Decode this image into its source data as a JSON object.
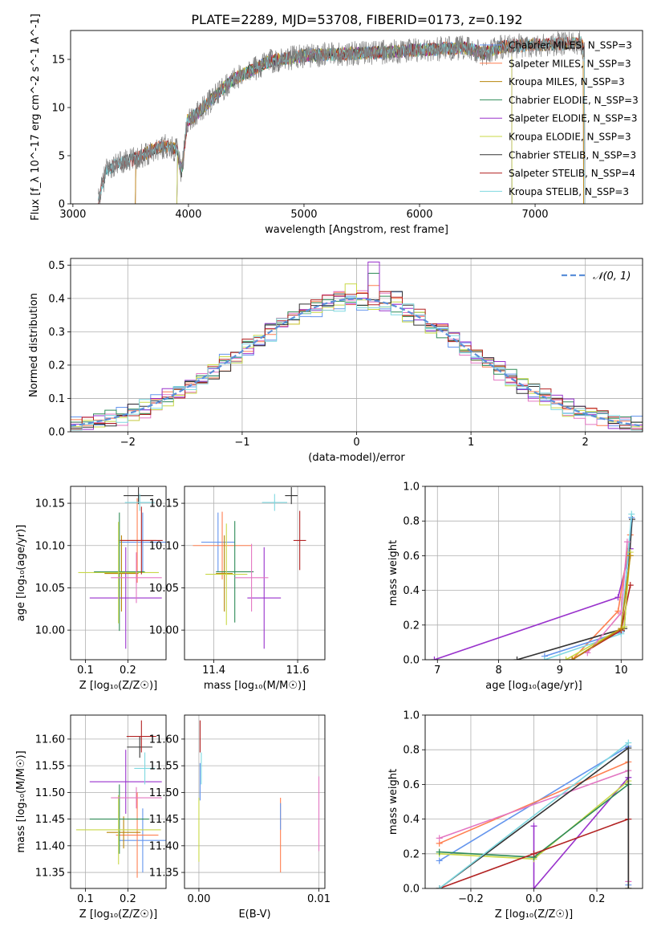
{
  "figure": {
    "title": "PLATE=2289, MJD=53708, FIBERID=0173, z=0.192"
  },
  "chart_data": [
    {
      "id": "spectrum",
      "type": "line",
      "xlabel": "wavelength [Angstrom, rest frame]",
      "ylabel": "Flux [f_λ 10^-17 erg cm^-2 s^-1 A^-1]",
      "xlim": [
        2980,
        7930
      ],
      "ylim": [
        0,
        18
      ],
      "xticks": [
        3000,
        4000,
        5000,
        6000,
        7000
      ],
      "yticks": [
        0,
        5,
        10,
        15
      ],
      "grid": false,
      "legend_position": "right",
      "observed_color": "#808080",
      "spectrum_anchors": {
        "x": [
          3220,
          3290,
          3400,
          3520,
          3600,
          3700,
          3800,
          3900,
          3940,
          3990,
          4100,
          4200,
          4300,
          4400,
          4500,
          4600,
          4700,
          4800,
          4900,
          5000,
          5200,
          5400,
          5600,
          5800,
          6000,
          6200,
          6400,
          6560,
          6700,
          7000,
          7300,
          7400,
          7430
        ],
        "y": [
          0.2,
          3.6,
          4.2,
          4.6,
          5.0,
          5.7,
          6.0,
          5.6,
          3.2,
          8.6,
          9.6,
          10.8,
          12.0,
          13.0,
          13.6,
          14.2,
          14.8,
          15.0,
          15.2,
          15.4,
          15.5,
          15.6,
          15.7,
          15.8,
          16.0,
          16.1,
          16.2,
          15.6,
          16.3,
          16.5,
          16.7,
          16.8,
          15.5
        ]
      },
      "models": [
        {
          "name": "Chabrier MILES, N_SSP=3",
          "color": "#6495ed",
          "x_start": 3540,
          "x_end": 7420
        },
        {
          "name": "Salpeter MILES, N_SSP=3",
          "color": "#ff7f50",
          "x_start": 3540,
          "x_end": 7420
        },
        {
          "name": "Kroupa MILES, N_SSP=3",
          "color": "#b8860b",
          "x_start": 3540,
          "x_end": 7420
        },
        {
          "name": "Chabrier ELODIE, N_SSP=3",
          "color": "#2e8b57",
          "x_start": 3900,
          "x_end": 6800
        },
        {
          "name": "Salpeter ELODIE, N_SSP=3",
          "color": "#9932cc",
          "x_start": 3900,
          "x_end": 6800
        },
        {
          "name": "Kroupa ELODIE, N_SSP=3",
          "color": "#c8d846",
          "x_start": 3900,
          "x_end": 6800
        },
        {
          "name": "Chabrier STELIB, N_SSP=3",
          "color": "#333333",
          "x_start": 3220,
          "x_end": 7430
        },
        {
          "name": "Salpeter STELIB, N_SSP=4",
          "color": "#b22222",
          "x_start": 3220,
          "x_end": 7430
        },
        {
          "name": "Kroupa STELIB, N_SSP=3",
          "color": "#7fd8e0",
          "x_start": 3220,
          "x_end": 7430
        }
      ]
    },
    {
      "id": "residuals",
      "type": "bar",
      "xlabel": "(data-model)/error",
      "ylabel": "Normed distribution",
      "xlim": [
        -2.5,
        2.5
      ],
      "ylim": [
        0,
        0.52
      ],
      "xticks": [
        -2,
        -1,
        0,
        1,
        2
      ],
      "yticks": [
        0.0,
        0.1,
        0.2,
        0.3,
        0.4,
        0.5
      ],
      "grid": true,
      "legend_position": "upper right",
      "gaussian": {
        "name": "𝒩(0, 1)",
        "mu": 0,
        "sigma": 1,
        "color": "#5b8fd9"
      },
      "bin_width": 0.1,
      "histograms": [
        {
          "color": "#6495ed",
          "amplitude": 0.39,
          "sigma": 1.03,
          "spike_at": 0.35,
          "spike": 0.05
        },
        {
          "color": "#ff7f50",
          "amplitude": 0.4,
          "sigma": 1.0,
          "spike_at": 0.15,
          "spike": 0.04
        },
        {
          "color": "#e377c2",
          "amplitude": 0.41,
          "sigma": 0.97,
          "spike_at": -0.25,
          "spike": 0.03
        },
        {
          "color": "#2e8b57",
          "amplitude": 0.4,
          "sigma": 1.02,
          "spike_at": 0.15,
          "spike": 0.08
        },
        {
          "color": "#9932cc",
          "amplitude": 0.4,
          "sigma": 1.01,
          "spike_at": 0.15,
          "spike": 0.09
        },
        {
          "color": "#c8d846",
          "amplitude": 0.39,
          "sigma": 1.0,
          "spike_at": -0.05,
          "spike": 0.03
        },
        {
          "color": "#333333",
          "amplitude": 0.4,
          "sigma": 1.0,
          "spike_at": 0.35,
          "spike": 0.03
        },
        {
          "color": "#b22222",
          "amplitude": 0.41,
          "sigma": 1.0,
          "spike_at": 0.75,
          "spike": 0.03
        },
        {
          "color": "#7fd8e0",
          "amplitude": 0.39,
          "sigma": 1.01,
          "spike_at": 0.45,
          "spike": 0.03
        }
      ]
    },
    {
      "id": "age-vs-metallicity",
      "type": "scatter",
      "xlabel": "Z [log₁₀(Z/Z☉)]",
      "ylabel": "age  [log₁₀(age/yr)]",
      "xlim": [
        0.065,
        0.29
      ],
      "ylim": [
        9.965,
        10.17
      ],
      "xticks": [
        0.1,
        0.2
      ],
      "yticks": [
        10.0,
        10.05,
        10.1,
        10.15
      ],
      "grid": true,
      "points": [
        {
          "color": "#6495ed",
          "x": 0.235,
          "y": 10.104,
          "xerr": 0.055,
          "yerr": 0.035
        },
        {
          "color": "#ff7f50",
          "x": 0.222,
          "y": 10.106,
          "xerr": 0.045,
          "yerr": 0.05
        },
        {
          "color": "#b8860b",
          "x": 0.185,
          "y": 10.067,
          "xerr": 0.04,
          "yerr": 0.045
        },
        {
          "color": "#2e8b57",
          "x": 0.18,
          "y": 10.069,
          "xerr": 0.06,
          "yerr": 0.07
        },
        {
          "color": "#9932cc",
          "x": 0.195,
          "y": 10.038,
          "xerr": 0.085,
          "yerr": 0.06
        },
        {
          "color": "#c8d846",
          "x": 0.178,
          "y": 10.068,
          "xerr": 0.095,
          "yerr": 0.06
        },
        {
          "color": "#333333",
          "x": 0.225,
          "y": 10.159,
          "xerr": 0.035,
          "yerr": 0.01
        },
        {
          "color": "#b22222",
          "x": 0.232,
          "y": 10.106,
          "xerr": 0.05,
          "yerr": 0.04
        },
        {
          "color": "#7fd8e0",
          "x": 0.228,
          "y": 10.151,
          "xerr": 0.035,
          "yerr": 0.01
        },
        {
          "color": "#e377c2",
          "x": 0.22,
          "y": 10.062,
          "xerr": 0.06,
          "yerr": 0.03
        }
      ]
    },
    {
      "id": "age-vs-mass",
      "type": "scatter",
      "xlabel": "mass [log₁₀(M/M☉)]",
      "ylabel": "",
      "xlim": [
        11.33,
        11.665
      ],
      "ylim": [
        9.965,
        10.17
      ],
      "xticks": [
        11.4,
        11.6
      ],
      "yticks": [
        10.0,
        10.05,
        10.1,
        10.15
      ],
      "grid": true,
      "points": [
        {
          "color": "#6495ed",
          "x": 11.41,
          "y": 10.104,
          "xerr": 0.04,
          "yerr": 0.035
        },
        {
          "color": "#ff7f50",
          "x": 11.42,
          "y": 10.1,
          "xerr": 0.07,
          "yerr": 0.04
        },
        {
          "color": "#b8860b",
          "x": 11.425,
          "y": 10.067,
          "xerr": 0.02,
          "yerr": 0.045
        },
        {
          "color": "#2e8b57",
          "x": 11.45,
          "y": 10.069,
          "xerr": 0.045,
          "yerr": 0.06
        },
        {
          "color": "#9932cc",
          "x": 11.52,
          "y": 10.038,
          "xerr": 0.04,
          "yerr": 0.06
        },
        {
          "color": "#c8d846",
          "x": 11.43,
          "y": 10.066,
          "xerr": 0.05,
          "yerr": 0.06
        },
        {
          "color": "#333333",
          "x": 11.585,
          "y": 10.159,
          "xerr": 0.015,
          "yerr": 0.01
        },
        {
          "color": "#b22222",
          "x": 11.605,
          "y": 10.106,
          "xerr": 0.015,
          "yerr": 0.035
        },
        {
          "color": "#7fd8e0",
          "x": 11.545,
          "y": 10.151,
          "xerr": 0.03,
          "yerr": 0.01
        },
        {
          "color": "#e377c2",
          "x": 11.49,
          "y": 10.062,
          "xerr": 0.04,
          "yerr": 0.04
        }
      ]
    },
    {
      "id": "mass-weight-vs-age",
      "type": "line",
      "xlabel": "age  [log₁₀(age/yr)]",
      "ylabel": "mass weight",
      "xlim": [
        6.8,
        10.35
      ],
      "ylim": [
        0,
        1.0
      ],
      "xticks": [
        7,
        8,
        9,
        10
      ],
      "yticks": [
        0.0,
        0.2,
        0.4,
        0.6,
        0.8,
        1.0
      ],
      "grid": true,
      "series": [
        {
          "color": "#9932cc",
          "x": [
            6.95,
            9.95,
            10.15
          ],
          "y": [
            0.0,
            0.36,
            0.64
          ]
        },
        {
          "color": "#ff7f50",
          "x": [
            9.2,
            9.95,
            10.15
          ],
          "y": [
            0.0,
            0.28,
            0.72
          ]
        },
        {
          "color": "#333333",
          "x": [
            8.3,
            10.05,
            10.18
          ],
          "y": [
            0.0,
            0.18,
            0.81
          ]
        },
        {
          "color": "#6495ed",
          "x": [
            8.75,
            10.0,
            10.17
          ],
          "y": [
            0.02,
            0.16,
            0.82
          ]
        },
        {
          "color": "#7fd8e0",
          "x": [
            8.75,
            10.0,
            10.17
          ],
          "y": [
            0.0,
            0.15,
            0.84
          ]
        },
        {
          "color": "#b22222",
          "x": [
            9.2,
            10.0,
            10.15
          ],
          "y": [
            0.0,
            0.17,
            0.43
          ]
        },
        {
          "color": "#c8d846",
          "x": [
            9.1,
            10.05,
            10.15
          ],
          "y": [
            0.0,
            0.19,
            0.62
          ]
        },
        {
          "color": "#e377c2",
          "x": [
            9.45,
            10.0,
            10.1
          ],
          "y": [
            0.04,
            0.27,
            0.68
          ]
        },
        {
          "color": "#b8860b",
          "x": [
            9.2,
            10.0,
            10.15
          ],
          "y": [
            0.0,
            0.18,
            0.6
          ]
        }
      ]
    },
    {
      "id": "mass-vs-metallicity",
      "type": "scatter",
      "xlabel": "Z [log₁₀(Z/Z☉)]",
      "ylabel": "mass [log₁₀(M/M☉)]",
      "xlim": [
        0.065,
        0.29
      ],
      "ylim": [
        11.32,
        11.645
      ],
      "xticks": [
        0.1,
        0.2
      ],
      "yticks": [
        11.35,
        11.4,
        11.45,
        11.5,
        11.55,
        11.6
      ],
      "grid": true,
      "points": [
        {
          "color": "#6495ed",
          "x": 0.235,
          "y": 11.41,
          "xerr": 0.055,
          "yerr": 0.06
        },
        {
          "color": "#ff7f50",
          "x": 0.222,
          "y": 11.42,
          "xerr": 0.05,
          "yerr": 0.08
        },
        {
          "color": "#b8860b",
          "x": 0.19,
          "y": 11.425,
          "xerr": 0.04,
          "yerr": 0.03
        },
        {
          "color": "#2e8b57",
          "x": 0.18,
          "y": 11.45,
          "xerr": 0.07,
          "yerr": 0.065
        },
        {
          "color": "#9932cc",
          "x": 0.195,
          "y": 11.52,
          "xerr": 0.085,
          "yerr": 0.06
        },
        {
          "color": "#c8d846",
          "x": 0.178,
          "y": 11.43,
          "xerr": 0.1,
          "yerr": 0.065
        },
        {
          "color": "#333333",
          "x": 0.228,
          "y": 11.585,
          "xerr": 0.03,
          "yerr": 0.02
        },
        {
          "color": "#b22222",
          "x": 0.232,
          "y": 11.605,
          "xerr": 0.035,
          "yerr": 0.03
        },
        {
          "color": "#7fd8e0",
          "x": 0.24,
          "y": 11.545,
          "xerr": 0.025,
          "yerr": 0.03
        },
        {
          "color": "#e377c2",
          "x": 0.22,
          "y": 11.49,
          "xerr": 0.06,
          "yerr": 0.02
        }
      ]
    },
    {
      "id": "mass-vs-ebv",
      "type": "scatter",
      "xlabel": "E(B-V)",
      "ylabel": "",
      "xlim": [
        -0.0012,
        0.0105
      ],
      "ylim": [
        11.32,
        11.645
      ],
      "xticks": [
        0.0,
        0.01
      ],
      "yticks": [
        11.35,
        11.4,
        11.45,
        11.5,
        11.55,
        11.6
      ],
      "grid": true,
      "points": [
        {
          "color": "#6495ed",
          "x": 0.0001,
          "y": 11.52,
          "xerr": 0,
          "yerr": 0.035
        },
        {
          "color": "#b22222",
          "x": 0.0001,
          "y": 11.605,
          "xerr": 0,
          "yerr": 0.03
        },
        {
          "color": "#c8d846",
          "x": 0.0,
          "y": 11.43,
          "xerr": 0,
          "yerr": 0.06
        },
        {
          "color": "#7fd8e0",
          "x": 0.0002,
          "y": 11.545,
          "xerr": 0,
          "yerr": 0.03
        },
        {
          "color": "#ff7f50",
          "x": 0.0068,
          "y": 11.42,
          "xerr": 0,
          "yerr": 0.07
        },
        {
          "color": "#6495ed",
          "x": 0.0068,
          "y": 11.455,
          "xerr": 0,
          "yerr": 0.025
        },
        {
          "color": "#e377c2",
          "x": 0.01,
          "y": 11.46,
          "xerr": 0,
          "yerr": 0.07
        }
      ]
    },
    {
      "id": "mass-weight-vs-metallicity",
      "type": "line",
      "xlabel": "Z [log₁₀(Z/Z☉)]",
      "ylabel": "mass weight",
      "xlim": [
        -0.345,
        0.345
      ],
      "ylim": [
        0,
        1.0
      ],
      "xticks": [
        -0.2,
        0.0,
        0.2
      ],
      "yticks": [
        0.0,
        0.2,
        0.4,
        0.6,
        0.8,
        1.0
      ],
      "grid": true,
      "series": [
        {
          "color": "#6495ed",
          "x": [
            -0.3,
            0.3,
            0.3
          ],
          "y": [
            0.16,
            0.82,
            0.02
          ]
        },
        {
          "color": "#ff7f50",
          "x": [
            -0.3,
            0.3,
            0.3
          ],
          "y": [
            0.26,
            0.73,
            0.0
          ]
        },
        {
          "color": "#e377c2",
          "x": [
            -0.3,
            0.3,
            0.3
          ],
          "y": [
            0.29,
            0.68,
            0.04
          ]
        },
        {
          "color": "#9932cc",
          "x": [
            0.0,
            0.0,
            0.3
          ],
          "y": [
            0.36,
            0.0,
            0.64
          ]
        },
        {
          "color": "#c8d846",
          "x": [
            -0.3,
            0.0,
            0.3,
            0.3
          ],
          "y": [
            0.2,
            0.17,
            0.62,
            0.0
          ]
        },
        {
          "color": "#2e8b57",
          "x": [
            -0.3,
            0.0,
            0.3
          ],
          "y": [
            0.21,
            0.18,
            0.6
          ]
        },
        {
          "color": "#b22222",
          "x": [
            -0.3,
            0.0,
            0.3
          ],
          "y": [
            0.0,
            0.2,
            0.4
          ]
        },
        {
          "color": "#333333",
          "x": [
            -0.3,
            0.3,
            0.3
          ],
          "y": [
            0.0,
            0.81,
            0.0
          ]
        },
        {
          "color": "#7fd8e0",
          "x": [
            -0.3,
            0.3
          ],
          "y": [
            0.0,
            0.84
          ]
        }
      ]
    }
  ]
}
